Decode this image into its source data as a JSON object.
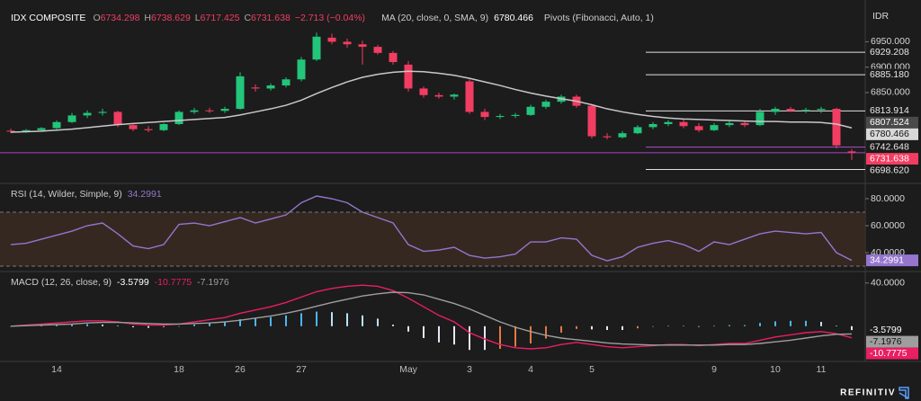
{
  "brand": "REFINITIV",
  "chart_data": [
    {
      "type": "candlestick",
      "title": "IDX COMPOSITE",
      "currency": "IDR",
      "legend_keys": [
        "O",
        "H",
        "L",
        "C"
      ],
      "change": "−2.713 (−0.04%)",
      "up_color": "#22c57a",
      "down_color": "#f23d62",
      "ylim": [
        6673,
        7018
      ],
      "yticks": [
        {
          "value": 6950,
          "label": "6950.000"
        },
        {
          "value": 6900,
          "label": "6900.000"
        },
        {
          "value": 6850,
          "label": "6850.000"
        }
      ],
      "open": [
        6775,
        6774,
        6776,
        6780,
        6792,
        6805,
        6810,
        6812,
        6786,
        6778,
        6776,
        6788,
        6812,
        6815,
        6814,
        6818,
        6860,
        6858,
        6864,
        6876,
        6915,
        6958,
        6950,
        6945,
        6940,
        6928,
        6905,
        6858,
        6845,
        6842,
        6872,
        6812,
        6802,
        6804,
        6806,
        6822,
        6832,
        6842,
        6824,
        6764,
        6762,
        6770,
        6782,
        6788,
        6792,
        6784,
        6776,
        6786,
        6790,
        6786,
        6812,
        6818,
        6814,
        6816,
        6818,
        6734.298
      ],
      "high": [
        6779,
        6778,
        6782,
        6795,
        6810,
        6815,
        6818,
        6814,
        6790,
        6784,
        6790,
        6815,
        6820,
        6820,
        6822,
        6890,
        6866,
        6868,
        6880,
        6920,
        6968,
        6966,
        6956,
        6952,
        6944,
        6932,
        6912,
        6862,
        6850,
        6848,
        6876,
        6818,
        6808,
        6810,
        6826,
        6836,
        6846,
        6846,
        6826,
        6770,
        6774,
        6786,
        6792,
        6796,
        6798,
        6790,
        6790,
        6796,
        6794,
        6818,
        6822,
        6822,
        6820,
        6822,
        6820,
        6738.629
      ],
      "low": [
        6770,
        6771,
        6773,
        6778,
        6790,
        6800,
        6805,
        6782,
        6774,
        6772,
        6774,
        6786,
        6808,
        6810,
        6810,
        6816,
        6852,
        6854,
        6860,
        6872,
        6912,
        6945,
        6938,
        6905,
        6925,
        6905,
        6852,
        6840,
        6838,
        6836,
        6808,
        6796,
        6798,
        6800,
        6804,
        6818,
        6828,
        6820,
        6760,
        6758,
        6760,
        6768,
        6778,
        6784,
        6780,
        6772,
        6774,
        6782,
        6782,
        6784,
        6806,
        6812,
        6810,
        6810,
        6740,
        6717.425
      ],
      "close": [
        6774,
        6776,
        6780,
        6792,
        6805,
        6810,
        6812,
        6786,
        6778,
        6776,
        6788,
        6812,
        6815,
        6814,
        6818,
        6882,
        6858,
        6864,
        6876,
        6915,
        6960,
        6950,
        6945,
        6940,
        6928,
        6910,
        6858,
        6845,
        6842,
        6846,
        6812,
        6802,
        6804,
        6806,
        6822,
        6832,
        6842,
        6824,
        6764,
        6762,
        6770,
        6782,
        6788,
        6792,
        6784,
        6776,
        6786,
        6790,
        6786,
        6812,
        6818,
        6814,
        6816,
        6818,
        6746,
        6731.638
      ],
      "series": [
        {
          "name": "MA (20, close, 0, SMA, 9)",
          "color": "#c8c8c8",
          "values": [
            6772,
            6773,
            6774,
            6776,
            6778,
            6781,
            6784,
            6787,
            6789,
            6791,
            6793,
            6795,
            6797,
            6799,
            6801,
            6806,
            6812,
            6818,
            6825,
            6835,
            6848,
            6860,
            6871,
            6880,
            6886,
            6890,
            6892,
            6891,
            6888,
            6884,
            6878,
            6871,
            6864,
            6856,
            6849,
            6843,
            6838,
            6833,
            6826,
            6818,
            6812,
            6807,
            6803,
            6800,
            6798,
            6797,
            6796,
            6795,
            6794,
            6793,
            6793,
            6792,
            6792,
            6791,
            6788,
            6780.466
          ]
        }
      ],
      "pivots": {
        "name": "Pivots (Fibonacci, Auto, 1)",
        "levels": [
          6929.208,
          6885.18,
          6813.914,
          6742.648,
          6698.62
        ],
        "value_labels": [
          "6929.208",
          "6885.180",
          "6813.914",
          "6742.648",
          "6698.620"
        ],
        "colors": [
          "#e0e0e0",
          "#e0e0e0",
          "#e0e0e0",
          "#b04cd0",
          "#e0e0e0"
        ]
      },
      "last_price_color": "#a844c8",
      "price_tags": [
        6807.524
      ]
    },
    {
      "type": "line",
      "title": "RSI (14, Wilder, Simple, 9)",
      "ylim": [
        26.7,
        90
      ],
      "yticks": [
        {
          "value": 80,
          "label": "80.0000"
        },
        {
          "value": 60,
          "label": "60.0000"
        },
        {
          "value": 40,
          "label": "40.0000"
        }
      ],
      "band": [
        30,
        70
      ],
      "band_color": "#3a2a22",
      "series": [
        {
          "color": "#9575cd",
          "values": [
            46,
            47,
            50,
            53,
            56,
            60,
            62,
            54,
            45,
            43,
            46,
            61,
            62,
            60,
            63,
            66,
            62,
            65,
            68,
            77,
            82,
            80,
            77,
            70,
            66,
            62,
            46,
            41,
            42,
            44,
            38,
            36,
            37,
            39,
            48,
            48,
            51,
            50,
            38,
            34,
            37,
            44,
            47,
            49,
            46,
            41,
            48,
            46,
            50,
            54,
            56,
            55,
            54,
            55,
            40,
            34.2991
          ]
        }
      ]
    },
    {
      "type": "macd",
      "title": "MACD (12, 26, close, 9)",
      "ylim": [
        -31,
        49
      ],
      "yticks": [
        {
          "value": 40,
          "label": "40.0000"
        }
      ],
      "categories": [
        null,
        null,
        null,
        "14",
        null,
        null,
        null,
        null,
        null,
        null,
        null,
        "18",
        null,
        null,
        null,
        "26",
        null,
        null,
        null,
        "27",
        null,
        null,
        null,
        null,
        null,
        null,
        "May",
        null,
        null,
        null,
        "3",
        null,
        null,
        null,
        "4",
        null,
        null,
        null,
        "5",
        null,
        null,
        null,
        null,
        null,
        null,
        null,
        "9",
        null,
        null,
        null,
        "10",
        null,
        null,
        "11",
        null,
        null
      ],
      "series": [
        {
          "type": "histogram",
          "colors": [
            "#4db6f0",
            "#b8e3ff",
            "#e8e6f8",
            "#e07a45"
          ],
          "values": [
            0,
            0.5,
            1,
            1.5,
            2,
            2,
            1.5,
            0.5,
            -1,
            -1.5,
            -1,
            0,
            1.5,
            3,
            4,
            6.5,
            7.5,
            8.5,
            10,
            12,
            13.5,
            13,
            12,
            10,
            7,
            1.5,
            -5,
            -11,
            -15,
            -17,
            -22,
            -22,
            -21,
            -19,
            -16,
            -11.5,
            -6,
            -2.5,
            -3,
            -3.5,
            -3.5,
            -2,
            -0.5,
            0.5,
            0.5,
            -0.5,
            0.5,
            1,
            1,
            3,
            4.5,
            5,
            5,
            4,
            0.5,
            -3.5799
          ]
        },
        {
          "type": "line",
          "color": "#e91e63",
          "values": [
            0,
            1,
            2,
            3,
            4,
            5,
            5,
            4,
            2,
            1,
            1,
            2,
            4,
            6,
            8,
            12,
            15,
            18,
            22,
            27,
            32,
            35,
            37,
            38,
            37,
            33,
            26,
            18,
            10,
            4,
            -6,
            -12,
            -17,
            -20,
            -21,
            -20,
            -17,
            -15,
            -17,
            -19,
            -20,
            -19,
            -18,
            -17,
            -17,
            -18,
            -17,
            -16,
            -16,
            -13,
            -10,
            -8,
            -6,
            -5,
            -7,
            -10.7775
          ]
        },
        {
          "type": "line",
          "color": "#9e9e9e",
          "values": [
            0,
            0.5,
            1,
            1.5,
            2,
            3,
            3.5,
            3.5,
            3,
            2.5,
            2,
            2,
            2.5,
            3,
            4,
            5.5,
            7.5,
            9.5,
            12,
            15,
            18.5,
            22,
            25,
            28,
            30,
            31.5,
            31,
            29,
            25,
            21,
            16,
            10,
            4,
            -1,
            -5,
            -8.5,
            -11,
            -12.5,
            -14,
            -15.5,
            -16.5,
            -17,
            -17.5,
            -17.5,
            -17.5,
            -17.5,
            -17.5,
            -17,
            -17,
            -16,
            -14.5,
            -13,
            -11,
            -9,
            -7.5,
            -7.1976
          ]
        }
      ]
    }
  ]
}
